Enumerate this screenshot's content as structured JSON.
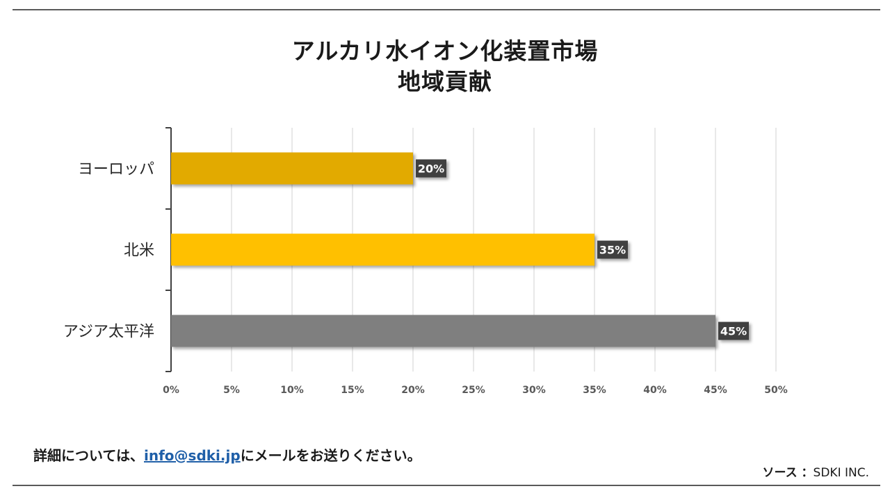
{
  "title_line1": "アルカリ水イオン化装置市場",
  "title_line2": "地域貢献",
  "footer": {
    "prefix": "詳細については、",
    "email": "info@sdki.jp",
    "suffix": "にメールをお送りください。"
  },
  "source": {
    "label": "ソース ：",
    "value": "SDKI INC."
  },
  "colors": {
    "europe": "#E2AA00",
    "north_america": "#FFC000",
    "asia_pacific": "#7F7F7F",
    "label_bg": "#404040"
  },
  "chart_data": {
    "type": "bar",
    "orientation": "horizontal",
    "categories": [
      "ヨーロッパ",
      "北米",
      "アジア太平洋"
    ],
    "values": [
      20,
      35,
      45
    ],
    "data_labels": [
      "20%",
      "35%",
      "45%"
    ],
    "xlim": [
      0,
      50
    ],
    "x_ticks": [
      "0%",
      "5%",
      "10%",
      "15%",
      "20%",
      "25%",
      "30%",
      "35%",
      "40%",
      "45%",
      "50%"
    ],
    "grid": true
  }
}
